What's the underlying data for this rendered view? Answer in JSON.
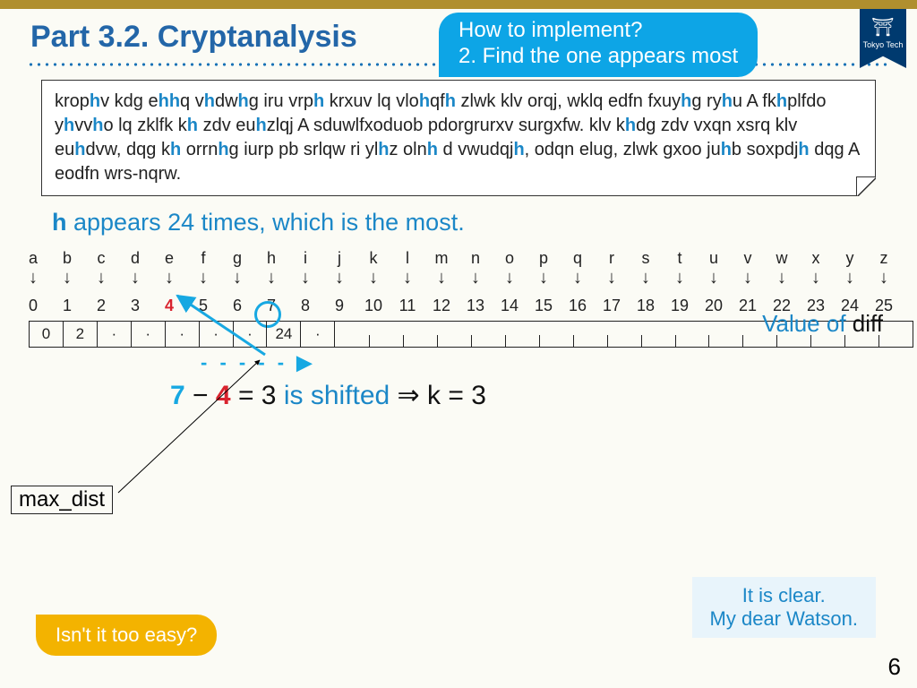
{
  "title": "Part 3.2.  Cryptanalysis",
  "callout": {
    "line1": "How to implement?",
    "line2": "2. Find the one appears most"
  },
  "ribbon": "Tokyo Tech",
  "cipher_pieces": [
    "krop",
    "h",
    "v kdg e",
    "h",
    "h",
    "q v",
    "h",
    "dw",
    "h",
    "g iru vrp",
    "h",
    " krxuv lq vlo",
    "h",
    "qf",
    "h",
    " zlwk klv orqj, wklq edfn fxuy",
    "h",
    "g ry",
    "h",
    "u A fk",
    "h",
    "plfdo y",
    "h",
    "vv",
    "h",
    "o lq zklfk k",
    "h",
    " zdv eu",
    "h",
    "zlqj A sduwlfxoduob pdorgrurxv surgxfw. klv k",
    "h",
    "dg zdv vxqn xsrq klv eu",
    "h",
    "dvw, dqg k",
    "h",
    " orrn",
    "h",
    "g iurp pb srlqw ri yl",
    "h",
    "z oln",
    "h",
    " d vwudqj",
    "h",
    ", odqn elug, zlwk gxoo ju",
    "h",
    "b soxpdj",
    "h",
    " dqg A eodfn wrs-nqrw."
  ],
  "summary": {
    "bold": "h ",
    "rest": "appears 24 times, which is the most."
  },
  "letters": [
    "a",
    "b",
    "c",
    "d",
    "e",
    "f",
    "g",
    "h",
    "i",
    "j",
    "k",
    "l",
    "m",
    "n",
    "o",
    "p",
    "q",
    "r",
    "s",
    "t",
    "u",
    "v",
    "w",
    "x",
    "y",
    "z"
  ],
  "numbers": [
    "0",
    "1",
    "2",
    "3",
    "4",
    "5",
    "6",
    "7",
    "8",
    "9",
    "10",
    "11",
    "12",
    "13",
    "14",
    "15",
    "16",
    "17",
    "18",
    "19",
    "20",
    "21",
    "22",
    "23",
    "24",
    "25"
  ],
  "diff_cells": [
    "0",
    "2",
    "·",
    "·",
    "·",
    "·",
    "·",
    "24",
    "·",
    "",
    "",
    "",
    "",
    "",
    "",
    "",
    "",
    "",
    "",
    "",
    "",
    "",
    "",
    "",
    "",
    ""
  ],
  "diff_label": {
    "a": "Value of ",
    "b": "diff"
  },
  "dash_arrow": "- - - - - ▶",
  "calc": {
    "p1": "7",
    "p2": "−",
    "p3": "4",
    "p4": " = 3 ",
    "p5": "is shifted ",
    "p6": "⇒",
    "p7": " k = 3"
  },
  "max_dist": "max_dist",
  "easy": "Isn't it too easy?",
  "watson": {
    "l1": "It is clear.",
    "l2": "My dear Watson."
  },
  "page": "6"
}
